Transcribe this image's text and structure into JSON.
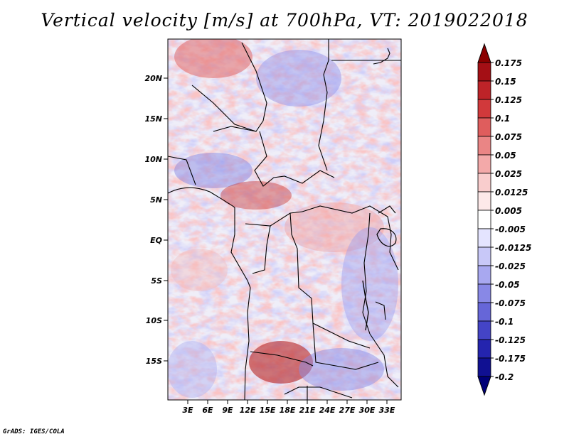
{
  "title": "Vertical velocity [m/s] at 700hPa, VT: 2019022018",
  "credit": "GrADS: IGES/COLA",
  "map": {
    "lat_labels": [
      "20N",
      "15N",
      "10N",
      "5N",
      "EQ",
      "5S",
      "10S",
      "15S"
    ],
    "lon_labels": [
      "3E",
      "6E",
      "9E",
      "12E",
      "15E",
      "18E",
      "21E",
      "24E",
      "27E",
      "30E",
      "33E"
    ]
  },
  "colorbar": {
    "labels": [
      "0.175",
      "0.15",
      "0.125",
      "0.1",
      "0.075",
      "0.05",
      "0.025",
      "0.0125",
      "0.005",
      "-0.005",
      "-0.0125",
      "-0.025",
      "-0.05",
      "-0.075",
      "-0.1",
      "-0.125",
      "-0.175",
      "-0.2"
    ],
    "colors": [
      "#8b0000",
      "#a40f15",
      "#bd2328",
      "#d1393b",
      "#df5d5d",
      "#ea8585",
      "#f3a9a9",
      "#f9cdcd",
      "#fde9e9",
      "#ffffff",
      "#e4e4ff",
      "#c8c8f8",
      "#a8a8f0",
      "#8888e6",
      "#6666d8",
      "#4444c6",
      "#2424ae",
      "#101092",
      "#000078"
    ]
  }
}
